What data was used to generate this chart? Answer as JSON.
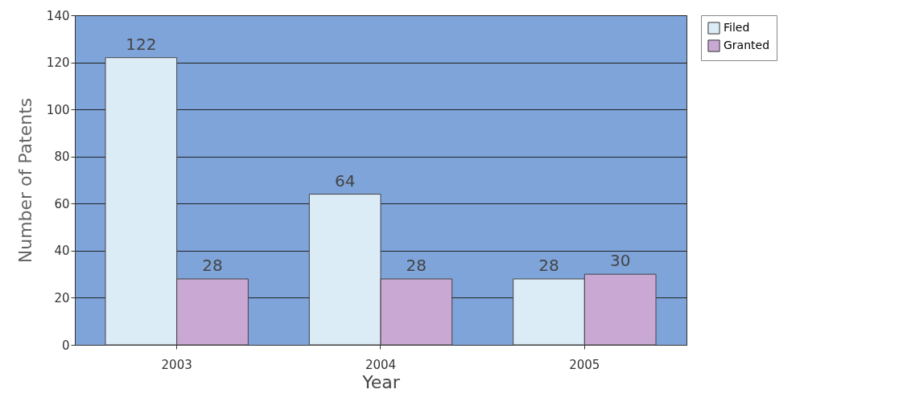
{
  "chart_data": {
    "type": "bar",
    "xlabel": "Year",
    "ylabel": "Number of Patents",
    "categories": [
      "2003",
      "2004",
      "2005"
    ],
    "series": [
      {
        "name": "Filed",
        "color": "#dcecf6",
        "values": [
          122,
          64,
          28
        ]
      },
      {
        "name": "Granted",
        "color": "#c9a9d3",
        "values": [
          28,
          28,
          30
        ]
      }
    ],
    "ylim": [
      0,
      140
    ],
    "yticks": [
      0,
      20,
      40,
      60,
      80,
      100,
      120,
      140
    ],
    "grid": "y",
    "legend": "right",
    "data_labels": true
  }
}
